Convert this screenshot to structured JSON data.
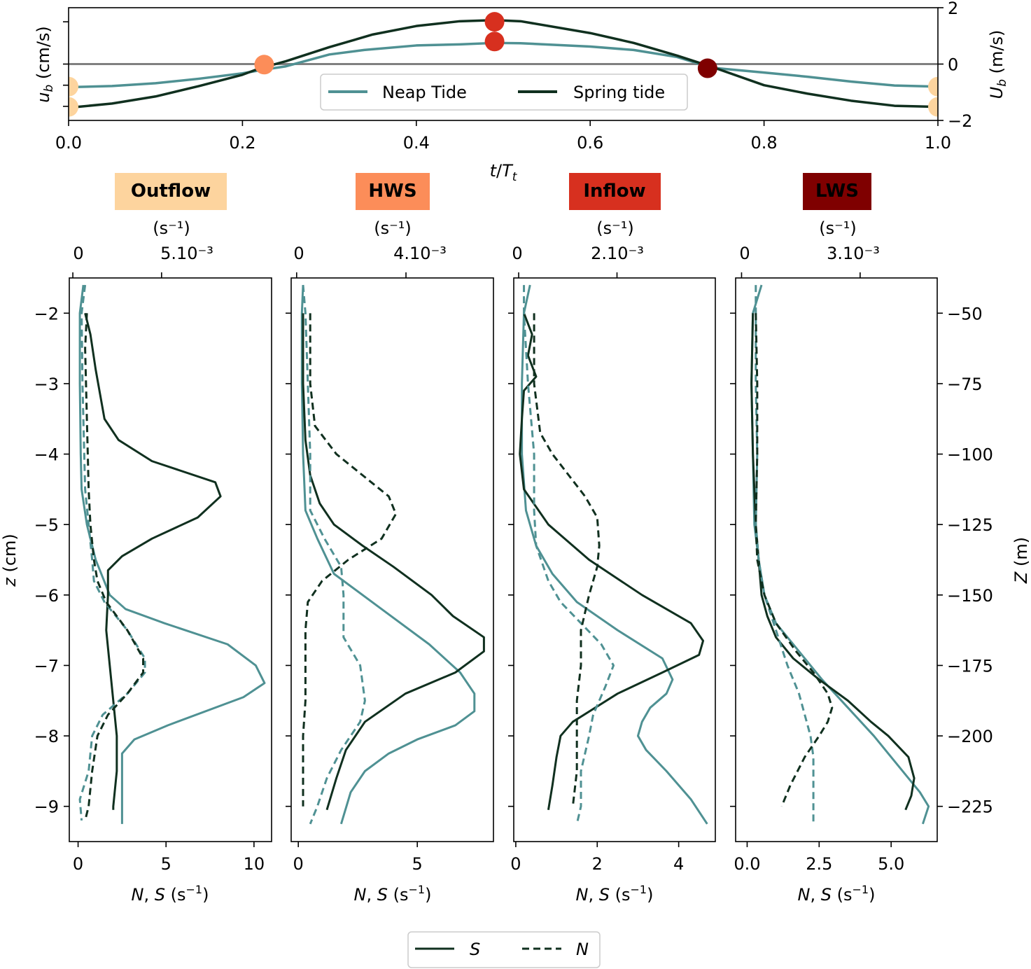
{
  "colors": {
    "neap": "#4f9193",
    "spring": "#10301f",
    "zero_line": "#808080",
    "outflow": "#fdd49e",
    "hws": "#fc8d59",
    "inflow": "#d7301f",
    "lws": "#7f0000"
  },
  "top_panel": {
    "ylabel_left": "u_b (cm/s)",
    "ylabel_right": "U_b (m/s)",
    "xlabel": "t/T_t",
    "legend": [
      "Neap Tide",
      "Spring tide"
    ]
  },
  "phases": [
    {
      "title": "Outflow",
      "color": "#fdd49e",
      "title_text_color": "#000000",
      "top_unit": "(s⁻¹)",
      "top_ticks": [
        "0",
        "5.10⁻³"
      ]
    },
    {
      "title": "HWS",
      "color": "#fc8d59",
      "title_text_color": "#ffffff",
      "top_unit": "(s⁻¹)",
      "top_ticks": [
        "0",
        "4.10⁻³"
      ]
    },
    {
      "title": "Inflow",
      "color": "#d7301f",
      "title_text_color": "#ffffff",
      "top_unit": "(s⁻¹)",
      "top_ticks": [
        "0",
        "2.10⁻³"
      ]
    },
    {
      "title": "LWS",
      "color": "#7f0000",
      "title_text_color": "#ffffff",
      "top_unit": "(s⁻¹)",
      "top_ticks": [
        "0",
        "3.10⁻³"
      ]
    }
  ],
  "profiles_common": {
    "xlabel": "N, S (s⁻¹)",
    "ylabel_left": "z (cm)",
    "ylabel_right": "Z (m)",
    "legend": [
      "S",
      "N"
    ]
  },
  "chart_data": [
    {
      "type": "line",
      "name": "tidal velocity",
      "xlabel": "t/T_t",
      "xlim": [
        0,
        1
      ],
      "ylim_right": [
        -2,
        2
      ],
      "x_ticks": [
        0.0,
        0.2,
        0.4,
        0.6,
        0.8,
        1.0
      ],
      "right_y_ticks": [
        2,
        0,
        -2
      ],
      "series": [
        {
          "name": "Neap Tide",
          "x": [
            0,
            0.05,
            0.1,
            0.15,
            0.2,
            0.22,
            0.25,
            0.3,
            0.34,
            0.4,
            0.45,
            0.49,
            0.52,
            0.6,
            0.65,
            0.7,
            0.74,
            0.8,
            0.85,
            0.9,
            0.95,
            1.0
          ],
          "y": [
            -0.82,
            -0.78,
            -0.68,
            -0.52,
            -0.33,
            -0.22,
            -0.08,
            0.34,
            0.5,
            0.66,
            0.7,
            0.75,
            0.74,
            0.62,
            0.5,
            0.25,
            -0.13,
            -0.3,
            -0.45,
            -0.62,
            -0.76,
            -0.8
          ]
        },
        {
          "name": "Spring tide",
          "x": [
            0,
            0.05,
            0.1,
            0.15,
            0.2,
            0.22,
            0.25,
            0.3,
            0.35,
            0.4,
            0.45,
            0.49,
            0.52,
            0.6,
            0.65,
            0.7,
            0.74,
            0.8,
            0.85,
            0.9,
            0.95,
            1.0
          ],
          "y": [
            -1.55,
            -1.4,
            -1.15,
            -0.78,
            -0.38,
            -0.15,
            0.1,
            0.6,
            1.05,
            1.35,
            1.52,
            1.56,
            1.52,
            1.1,
            0.75,
            0.3,
            -0.1,
            -0.75,
            -1.05,
            -1.3,
            -1.48,
            -1.52
          ]
        }
      ],
      "markers": [
        {
          "phase": "Outflow",
          "x": 0.0,
          "y": -0.8,
          "color": "#fdd49e"
        },
        {
          "phase": "Outflow",
          "x": 0.0,
          "y": -1.52,
          "color": "#fdd49e"
        },
        {
          "phase": "Outflow",
          "x": 1.0,
          "y": -0.8,
          "color": "#fdd49e"
        },
        {
          "phase": "Outflow",
          "x": 1.0,
          "y": -1.52,
          "color": "#fdd49e"
        },
        {
          "phase": "HWS",
          "x": 0.225,
          "y": -0.02,
          "color": "#fc8d59"
        },
        {
          "phase": "Inflow",
          "x": 0.49,
          "y": 1.5,
          "color": "#d7301f"
        },
        {
          "phase": "Inflow",
          "x": 0.49,
          "y": 0.8,
          "color": "#d7301f"
        },
        {
          "phase": "LWS",
          "x": 0.735,
          "y": -0.15,
          "color": "#7f0000"
        }
      ]
    },
    {
      "type": "line",
      "panel": "Outflow",
      "xlim": [
        -0.5,
        11
      ],
      "ylim": [
        -9.5,
        -1.5
      ],
      "x_ticks": [
        0,
        5,
        10
      ],
      "x_tick_labels": [
        "0",
        "5",
        "10"
      ],
      "top_xlim_physical": [
        -0.0002,
        0.0112
      ],
      "y_ticks": [
        -2,
        -3,
        -4,
        -5,
        -6,
        -7,
        -8,
        -9
      ],
      "right_y_ticks": [
        -50,
        -75,
        -100,
        -125,
        -150,
        -175,
        -200,
        -225
      ],
      "series": [
        {
          "name": "Neap S",
          "z": [
            -1.6,
            -2.0,
            -3.0,
            -4.0,
            -4.5,
            -5.0,
            -5.5,
            -6.0,
            -6.2,
            -6.4,
            -6.7,
            -7.0,
            -7.25,
            -7.45,
            -7.85,
            -8.05,
            -8.25,
            -8.6,
            -9.0,
            -9.25
          ],
          "x": [
            0.3,
            0.1,
            0.1,
            0.15,
            0.2,
            0.5,
            1.0,
            1.8,
            2.7,
            4.9,
            8.5,
            10.1,
            10.6,
            9.4,
            5.1,
            3.2,
            2.5,
            2.5,
            2.5,
            2.5
          ]
        },
        {
          "name": "Spring S",
          "z": [
            -2.0,
            -2.3,
            -2.8,
            -3.5,
            -3.8,
            -4.1,
            -4.4,
            -4.6,
            -4.9,
            -5.2,
            -5.45,
            -5.65,
            -6.0,
            -6.5,
            -7.0,
            -7.5,
            -8.0,
            -8.5,
            -9.0,
            -9.05
          ],
          "x": [
            0.4,
            0.7,
            1.0,
            1.5,
            2.3,
            4.2,
            7.8,
            8.1,
            6.8,
            4.2,
            2.5,
            1.7,
            1.7,
            1.6,
            1.8,
            2.0,
            2.2,
            2.2,
            2.0,
            2.0
          ]
        },
        {
          "name": "Neap N",
          "z": [
            -1.6,
            -2.0,
            -3.0,
            -4.0,
            -4.5,
            -5.0,
            -5.5,
            -5.8,
            -6.1,
            -6.5,
            -6.9,
            -7.1,
            -7.4,
            -7.7,
            -8.0,
            -8.5,
            -8.9,
            -9.2
          ],
          "x": [
            0.4,
            0.2,
            0.25,
            0.35,
            0.4,
            0.6,
            0.8,
            0.9,
            1.5,
            2.8,
            3.8,
            3.8,
            2.8,
            1.4,
            0.8,
            0.6,
            0.1,
            0.2
          ]
        },
        {
          "name": "Spring N",
          "z": [
            -2.0,
            -2.5,
            -3.0,
            -3.5,
            -4.0,
            -4.5,
            -5.0,
            -5.5,
            -5.8,
            -6.1,
            -6.5,
            -6.9,
            -7.1,
            -7.4,
            -7.7,
            -8.0,
            -8.5,
            -9.0,
            -9.2
          ],
          "x": [
            0.5,
            0.4,
            0.45,
            0.5,
            0.55,
            0.6,
            0.7,
            0.9,
            1.1,
            1.6,
            2.8,
            3.7,
            3.7,
            2.8,
            1.7,
            1.1,
            0.8,
            0.6,
            0.4
          ]
        }
      ]
    },
    {
      "type": "line",
      "panel": "HWS",
      "xlim": [
        -0.3,
        8.2
      ],
      "ylim": [
        -9.5,
        -1.5
      ],
      "x_ticks": [
        0,
        5
      ],
      "x_tick_labels": [
        "0",
        "5"
      ],
      "top_xlim_physical": [
        -0.0002,
        0.0072
      ],
      "series": [
        {
          "name": "Neap S",
          "z": [
            -1.6,
            -2.0,
            -3.0,
            -4.0,
            -4.8,
            -5.2,
            -5.7,
            -6.2,
            -6.7,
            -7.1,
            -7.4,
            -7.65,
            -7.85,
            -8.05,
            -8.25,
            -8.5,
            -8.8,
            -9.25
          ],
          "x": [
            0.2,
            0.15,
            0.15,
            0.2,
            0.3,
            0.8,
            1.5,
            3.5,
            5.5,
            6.8,
            7.4,
            7.4,
            6.6,
            5.0,
            3.8,
            2.8,
            2.2,
            1.8
          ]
        },
        {
          "name": "Spring S",
          "z": [
            -2.0,
            -3.0,
            -3.8,
            -4.3,
            -4.7,
            -5.0,
            -5.3,
            -5.6,
            -6.0,
            -6.3,
            -6.6,
            -6.8,
            -7.1,
            -7.4,
            -7.8,
            -8.2,
            -8.6,
            -9.05
          ],
          "x": [
            0.2,
            0.2,
            0.3,
            0.5,
            0.9,
            1.5,
            2.7,
            4.0,
            5.6,
            6.5,
            7.8,
            7.8,
            6.6,
            4.5,
            2.8,
            2.0,
            1.6,
            1.2
          ]
        },
        {
          "name": "Neap N",
          "z": [
            -1.6,
            -2.0,
            -3.0,
            -4.0,
            -4.8,
            -5.2,
            -5.6,
            -6.0,
            -6.6,
            -7.0,
            -7.5,
            -7.8,
            -8.2,
            -8.6,
            -9.0,
            -9.25
          ],
          "x": [
            0.2,
            0.3,
            0.4,
            0.5,
            0.5,
            1.1,
            1.8,
            1.9,
            1.9,
            2.6,
            2.8,
            2.6,
            1.8,
            1.2,
            0.8,
            0.5
          ]
        },
        {
          "name": "Spring N",
          "z": [
            -2.0,
            -3.0,
            -3.6,
            -4.0,
            -4.3,
            -4.6,
            -4.85,
            -5.2,
            -5.5,
            -5.8,
            -6.1,
            -6.5,
            -7.0,
            -7.5,
            -8.0,
            -8.5,
            -9.0
          ],
          "x": [
            0.5,
            0.5,
            0.7,
            1.6,
            2.7,
            3.8,
            4.1,
            3.5,
            2.1,
            1.0,
            0.4,
            0.3,
            0.3,
            0.3,
            0.2,
            0.2,
            0.2
          ]
        }
      ]
    },
    {
      "type": "line",
      "panel": "Inflow",
      "xlim": [
        -0.05,
        4.9
      ],
      "ylim": [
        -9.5,
        -1.5
      ],
      "x_ticks": [
        0,
        2,
        4
      ],
      "x_tick_labels": [
        "0",
        "2",
        "4"
      ],
      "top_xlim_physical": [
        -0.0001,
        0.004
      ],
      "series": [
        {
          "name": "Neap S",
          "z": [
            -1.6,
            -2.0,
            -3.0,
            -4.0,
            -4.8,
            -5.3,
            -5.7,
            -6.1,
            -6.5,
            -6.9,
            -7.2,
            -7.4,
            -7.6,
            -7.8,
            -8.0,
            -8.2,
            -8.5,
            -8.9,
            -9.25
          ],
          "x": [
            0.35,
            0.2,
            0.15,
            0.15,
            0.25,
            0.5,
            0.9,
            1.5,
            2.5,
            3.6,
            3.85,
            3.7,
            3.3,
            3.1,
            3.0,
            3.2,
            3.7,
            4.3,
            4.7
          ]
        },
        {
          "name": "Spring S",
          "z": [
            -2.0,
            -2.3,
            -2.6,
            -2.9,
            -3.1,
            -3.5,
            -4.0,
            -4.5,
            -5.0,
            -5.5,
            -6.0,
            -6.4,
            -6.65,
            -6.85,
            -7.1,
            -7.4,
            -7.8,
            -8.0,
            -8.3,
            -8.7,
            -9.05
          ],
          "x": [
            0.2,
            0.4,
            0.3,
            0.5,
            0.2,
            0.15,
            0.1,
            0.2,
            0.8,
            1.8,
            3.1,
            4.3,
            4.6,
            4.5,
            3.6,
            2.5,
            1.4,
            1.1,
            1.0,
            0.9,
            0.8
          ]
        },
        {
          "name": "Neap N",
          "z": [
            -1.6,
            -2.0,
            -3.0,
            -4.0,
            -4.8,
            -5.3,
            -5.8,
            -6.1,
            -6.4,
            -6.7,
            -7.0,
            -7.3,
            -7.7,
            -8.0,
            -8.5,
            -9.0,
            -9.25
          ],
          "x": [
            0.2,
            0.2,
            0.3,
            0.45,
            0.45,
            0.5,
            0.8,
            1.1,
            1.6,
            2.1,
            2.4,
            2.2,
            1.9,
            1.8,
            1.6,
            1.6,
            1.5
          ]
        },
        {
          "name": "Spring N",
          "z": [
            -2.0,
            -3.0,
            -3.7,
            -4.0,
            -4.3,
            -4.6,
            -4.9,
            -5.3,
            -5.6,
            -6.0,
            -6.5,
            -7.0,
            -7.5,
            -8.0,
            -8.5,
            -9.0
          ],
          "x": [
            0.45,
            0.45,
            0.6,
            0.9,
            1.3,
            1.7,
            2.0,
            2.05,
            2.0,
            1.8,
            1.6,
            1.6,
            1.5,
            1.5,
            1.5,
            1.4
          ]
        }
      ]
    },
    {
      "type": "line",
      "panel": "LWS",
      "xlim": [
        -0.4,
        6.6
      ],
      "ylim": [
        -9.5,
        -1.5
      ],
      "x_ticks": [
        0,
        2.5,
        5
      ],
      "x_tick_labels": [
        "0.0",
        "2.5",
        "5.0"
      ],
      "top_xlim_physical": [
        -0.0002,
        0.0066
      ],
      "series": [
        {
          "name": "Neap S",
          "z": [
            -1.6,
            -2.0,
            -3.0,
            -4.0,
            -5.0,
            -5.5,
            -6.0,
            -6.4,
            -6.8,
            -7.2,
            -7.6,
            -8.0,
            -8.4,
            -8.8,
            -9.0,
            -9.25
          ],
          "x": [
            0.5,
            0.2,
            0.15,
            0.2,
            0.25,
            0.4,
            0.6,
            1.0,
            1.8,
            2.6,
            3.5,
            4.4,
            5.2,
            6.0,
            6.3,
            6.1
          ]
        },
        {
          "name": "Spring S",
          "z": [
            -2.0,
            -3.0,
            -4.0,
            -5.0,
            -5.5,
            -6.0,
            -6.3,
            -6.6,
            -6.9,
            -7.2,
            -7.5,
            -7.8,
            -8.0,
            -8.3,
            -8.6,
            -8.85,
            -9.05
          ],
          "x": [
            0.2,
            0.15,
            0.2,
            0.3,
            0.4,
            0.5,
            0.7,
            1.0,
            1.6,
            2.5,
            3.5,
            4.3,
            4.9,
            5.6,
            5.8,
            5.7,
            5.5
          ]
        },
        {
          "name": "Neap N",
          "z": [
            -1.6,
            -2.0,
            -3.0,
            -4.0,
            -5.0,
            -5.5,
            -6.0,
            -6.5,
            -7.0,
            -7.4,
            -7.7,
            -8.0,
            -8.3,
            -8.7,
            -9.25
          ],
          "x": [
            0.3,
            0.3,
            0.3,
            0.35,
            0.3,
            0.4,
            0.6,
            1.0,
            1.4,
            1.8,
            2.0,
            2.2,
            2.3,
            2.3,
            2.3
          ]
        },
        {
          "name": "Spring N",
          "z": [
            -2.0,
            -3.0,
            -4.0,
            -5.0,
            -5.5,
            -6.0,
            -6.4,
            -6.8,
            -7.1,
            -7.4,
            -7.6,
            -7.8,
            -8.0,
            -8.3,
            -8.7,
            -9.0
          ],
          "x": [
            0.3,
            0.35,
            0.35,
            0.3,
            0.35,
            0.6,
            1.0,
            1.7,
            2.3,
            2.8,
            2.95,
            2.8,
            2.5,
            2.0,
            1.5,
            1.2
          ]
        }
      ]
    }
  ]
}
